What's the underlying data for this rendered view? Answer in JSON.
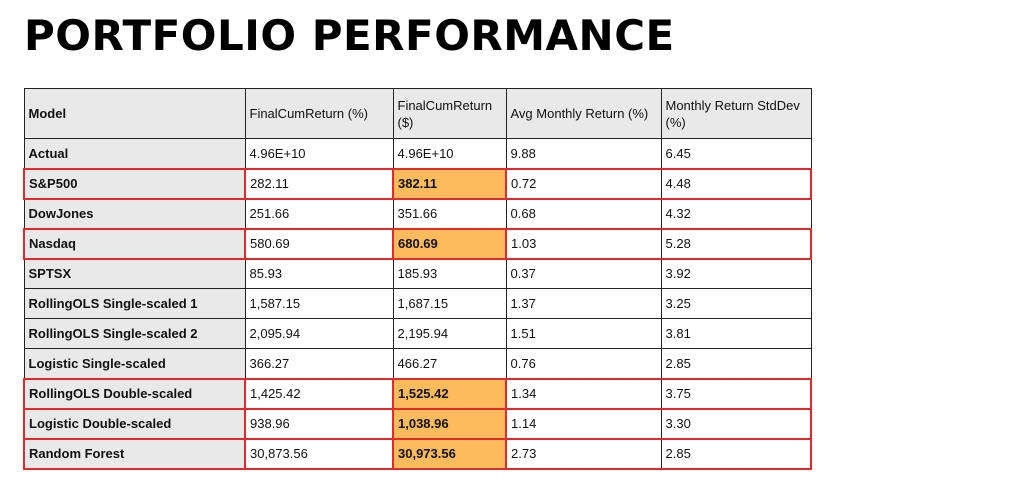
{
  "title": "PORTFOLIO PERFORMANCE",
  "colors": {
    "highlight_fill": "#fdbb5c",
    "highlight_border": "#e02b2b",
    "header_fill": "#e9e9e9"
  },
  "table": {
    "headers": [
      "Model",
      "FinalCumReturn (%)",
      "FinalCumReturn ($)",
      "Avg Monthly Return (%)",
      "Monthly Return StdDev (%)"
    ],
    "rows": [
      {
        "cells": [
          "Actual",
          "4.96E+10",
          "4.96E+10",
          "9.88",
          "6.45"
        ],
        "highlighted": false
      },
      {
        "cells": [
          "S&P500",
          "282.11",
          "382.11",
          "0.72",
          "4.48"
        ],
        "highlighted": true
      },
      {
        "cells": [
          "DowJones",
          "251.66",
          "351.66",
          "0.68",
          "4.32"
        ],
        "highlighted": false
      },
      {
        "cells": [
          "Nasdaq",
          "580.69",
          "680.69",
          "1.03",
          "5.28"
        ],
        "highlighted": true
      },
      {
        "cells": [
          "SPTSX",
          "85.93",
          "185.93",
          "0.37",
          "3.92"
        ],
        "highlighted": false
      },
      {
        "cells": [
          "RollingOLS Single-scaled 1",
          "1,587.15",
          "1,687.15",
          "1.37",
          "3.25"
        ],
        "highlighted": false
      },
      {
        "cells": [
          "RollingOLS Single-scaled 2",
          "2,095.94",
          "2,195.94",
          "1.51",
          "3.81"
        ],
        "highlighted": false
      },
      {
        "cells": [
          "Logistic Single-scaled",
          "366.27",
          "466.27",
          "0.76",
          "2.85"
        ],
        "highlighted": false
      },
      {
        "cells": [
          "RollingOLS Double-scaled",
          "1,425.42",
          "1,525.42",
          "1.34",
          "3.75"
        ],
        "highlighted": true
      },
      {
        "cells": [
          "Logistic Double-scaled",
          "938.96",
          "1,038.96",
          "1.14",
          "3.30"
        ],
        "highlighted": true
      },
      {
        "cells": [
          "Random Forest",
          "30,873.56",
          "30,973.56",
          "2.73",
          "2.85"
        ],
        "highlighted": true
      }
    ]
  }
}
